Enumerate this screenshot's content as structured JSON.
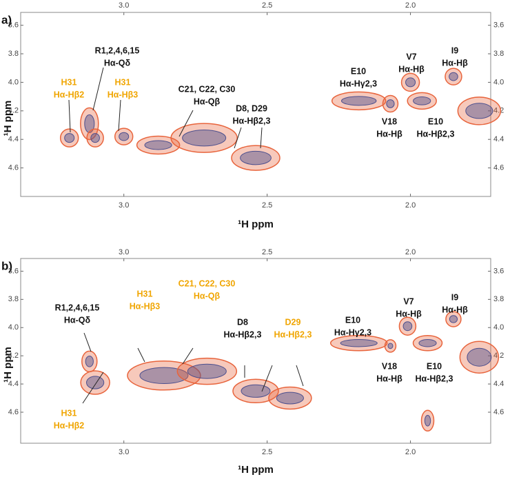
{
  "chart_data": [
    {
      "type": "contour",
      "label": "a)",
      "xlabel": "¹H ppm",
      "ylabel": "¹H ppm",
      "xlim": [
        3.36,
        1.72
      ],
      "ylim": [
        3.51,
        4.8
      ],
      "xticks": [
        {
          "value": 3,
          "label": "3.0"
        },
        2.5,
        {
          "value": 2,
          "label": "2.0"
        }
      ],
      "yticks": [
        3.6,
        3.8,
        {
          "value": 4,
          "label": "4.0"
        },
        4.2,
        4.4,
        4.6
      ],
      "color": "#e8643c",
      "inner_color": "#4b4f8e",
      "peaks": {
        "x": [
          3.12,
          3.19,
          3.1,
          3.0,
          2.88,
          2.72,
          2.54,
          2.18,
          2.07,
          2.0,
          1.96,
          1.85,
          1.76
        ],
        "y": [
          4.29,
          4.39,
          4.39,
          4.38,
          4.44,
          4.39,
          4.53,
          4.13,
          4.15,
          4.0,
          4.13,
          3.96,
          4.2
        ]
      },
      "annotations": [
        {
          "lines": [
            "R1,2,4,6,15",
            "Hα-Qδ"
          ],
          "color": "#111111"
        },
        {
          "lines": [
            "H31",
            "Hα-Hβ2"
          ],
          "color": "#f0a500"
        },
        {
          "lines": [
            "H31",
            "Hα-Hβ3"
          ],
          "color": "#f0a500"
        },
        {
          "lines": [
            "C21, C22, C30",
            "Hα-Qβ"
          ],
          "color": "#111111"
        },
        {
          "lines": [
            "D8, D29",
            "Hα-Hβ2,3"
          ],
          "color": "#111111"
        },
        {
          "lines": [
            "E10",
            "Hα-Hγ2,3"
          ],
          "color": "#111111"
        },
        {
          "lines": [
            "V7",
            "Hα-Hβ"
          ],
          "color": "#111111"
        },
        {
          "lines": [
            "I9",
            "Hα-Hβ"
          ],
          "color": "#111111"
        },
        {
          "lines": [
            "V18",
            "Hα-Hβ"
          ],
          "color": "#111111"
        },
        {
          "lines": [
            "E10",
            "Hα-Hβ2,3"
          ],
          "color": "#111111"
        }
      ]
    },
    {
      "type": "contour",
      "label": "b)",
      "xlabel": "¹H ppm",
      "ylabel": "¹H ppm",
      "xlim": [
        3.36,
        1.72
      ],
      "ylim": [
        3.51,
        4.82
      ],
      "xticks": [
        {
          "value": 3,
          "label": "3.0"
        },
        2.5,
        {
          "value": 2,
          "label": "2.0"
        }
      ],
      "yticks": [
        3.6,
        3.8,
        {
          "value": 4,
          "label": "4.0"
        },
        4.2,
        4.4,
        4.6
      ],
      "color": "#e8643c",
      "inner_color": "#4b4f8e",
      "peaks": {
        "x": [
          3.12,
          3.1,
          2.86,
          2.71,
          2.54,
          2.42,
          2.18,
          2.07,
          2.01,
          1.94,
          1.85,
          1.76,
          1.94
        ],
        "y": [
          4.24,
          4.39,
          4.34,
          4.31,
          4.45,
          4.5,
          4.11,
          4.13,
          3.99,
          4.11,
          3.94,
          4.21,
          4.66
        ]
      },
      "annotations": [
        {
          "lines": [
            "R1,2,4,6,15",
            "Hα-Qδ"
          ],
          "color": "#111111"
        },
        {
          "lines": [
            "H31",
            "Hα-Hβ3"
          ],
          "color": "#f0a500"
        },
        {
          "lines": [
            "C21, C22, C30",
            "Hα-Qβ"
          ],
          "color": "#f0a500"
        },
        {
          "lines": [
            "D8",
            "Hα-Hβ2,3"
          ],
          "color": "#111111"
        },
        {
          "lines": [
            "D29",
            "Hα-Hβ2,3"
          ],
          "color": "#f0a500"
        },
        {
          "lines": [
            "H31",
            "Hα-Hβ2"
          ],
          "color": "#f0a500"
        },
        {
          "lines": [
            "E10",
            "Hα-Hγ2,3"
          ],
          "color": "#111111"
        },
        {
          "lines": [
            "V7",
            "Hα-Hβ"
          ],
          "color": "#111111"
        },
        {
          "lines": [
            "I9",
            "Hα-Hβ"
          ],
          "color": "#111111"
        },
        {
          "lines": [
            "V18",
            "Hα-Hβ"
          ],
          "color": "#111111"
        },
        {
          "lines": [
            "E10",
            "Hα-Hβ2,3"
          ],
          "color": "#111111"
        }
      ]
    }
  ]
}
